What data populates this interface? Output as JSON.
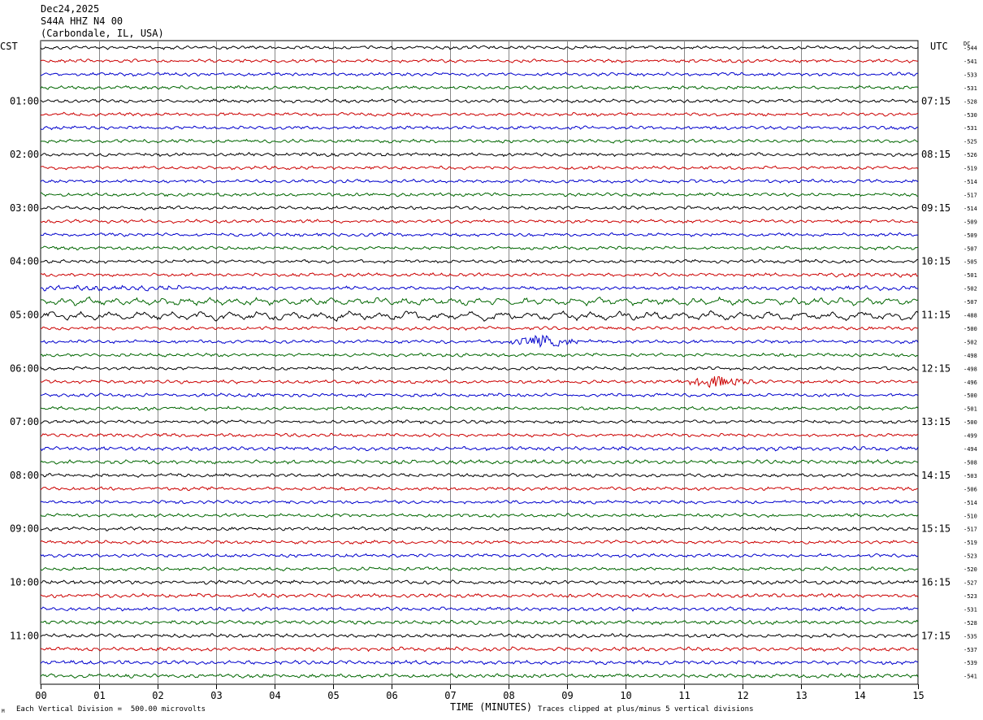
{
  "header": {
    "date": "Dec24,2025",
    "station": "S44A HHZ N4 00",
    "location": "(Carbondale, IL, USA)"
  },
  "left_zone": "CST",
  "right_zone": "UTC",
  "dc_label": "DC",
  "footer": {
    "scale_note": "Each Vertical Division =  500.00 microvolts",
    "clip_note": "Traces clipped at plus/minus 5 vertical divisions",
    "xlabel": "TIME (MINUTES)",
    "corner_mark": "M"
  },
  "chart_data": {
    "type": "line",
    "xlabel": "TIME (MINUTES)",
    "xlim": [
      0,
      15
    ],
    "x_ticks": [
      "00",
      "01",
      "02",
      "03",
      "04",
      "05",
      "06",
      "07",
      "08",
      "09",
      "10",
      "11",
      "12",
      "13",
      "14",
      "15"
    ],
    "trace_colors": [
      "#000000",
      "#cc0000",
      "#0000cc",
      "#006600"
    ],
    "left_hour_labels": [
      "01:00",
      "02:00",
      "03:00",
      "04:00",
      "05:00",
      "06:00",
      "07:00",
      "08:00",
      "09:00",
      "10:00",
      "11:00"
    ],
    "right_hour_labels": [
      "07:15",
      "08:15",
      "09:15",
      "10:15",
      "11:15",
      "12:15",
      "13:15",
      "14:15",
      "15:15",
      "16:15",
      "17:15"
    ],
    "dc_offsets": [
      "-544",
      "-541",
      "-533",
      "-531",
      "-528",
      "-530",
      "-531",
      "-525",
      "-526",
      "-519",
      "-514",
      "-517",
      "-514",
      "-509",
      "-509",
      "-507",
      "-505",
      "-501",
      "-502",
      "-507",
      "-488",
      "-500",
      "-502",
      "-498",
      "-498",
      "-496",
      "-500",
      "-501",
      "-500",
      "-499",
      "-494",
      "-508",
      "-503",
      "-506",
      "-514",
      "-510",
      "-517",
      "-519",
      "-523",
      "-520",
      "-527",
      "-523",
      "-531",
      "-528",
      "-535",
      "-537",
      "-539",
      "-541"
    ],
    "events": [
      {
        "trace": 22,
        "minute": 8.6,
        "label": ""
      },
      {
        "trace": 25,
        "minute": 11.6,
        "label": ""
      }
    ]
  }
}
